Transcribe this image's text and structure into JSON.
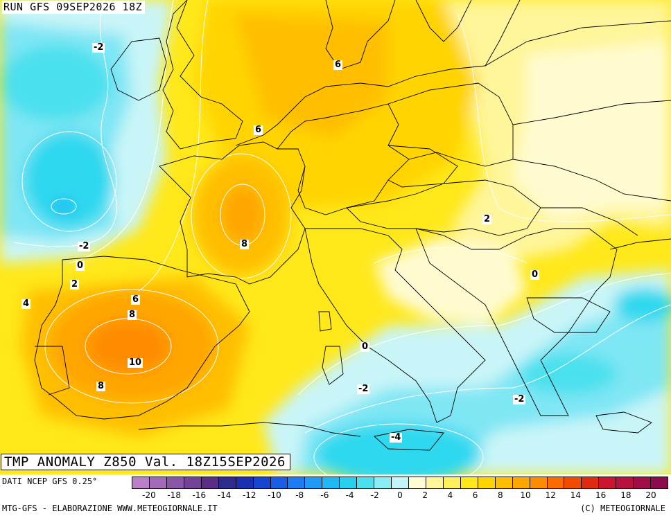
{
  "titles": {
    "run": "RUN GFS 09SEP2026 18Z",
    "valid": "TMP ANOMALY Z850 Val. 18Z15SEP2026"
  },
  "footer": {
    "data_source": "DATI NCEP GFS 0.25°",
    "credit_left": "MTG-GFS - ELABORAZIONE WWW.METEOGIORNALE.IT",
    "credit_right": "(C) METEOGIORNALE"
  },
  "colorbar": {
    "colors": [
      "#b97fc9",
      "#a26ab9",
      "#8b55a8",
      "#734195",
      "#5a2e85",
      "#2e2b8f",
      "#1b30b0",
      "#1745d0",
      "#1a5ee8",
      "#1d7cf2",
      "#1f9af5",
      "#1fb8f2",
      "#28d0ee",
      "#4ce0ee",
      "#8aecf4",
      "#c4f5f8",
      "#fffbd4",
      "#fff59a",
      "#fff060",
      "#ffe81a",
      "#ffd400",
      "#ffbf00",
      "#ffa600",
      "#ff8c00",
      "#ff6a00",
      "#f24a00",
      "#e02a10",
      "#cc1430",
      "#b8103f",
      "#a20d48",
      "#8c0b4f"
    ],
    "tick_labels": [
      "-20",
      "-18",
      "-16",
      "-14",
      "-12",
      "-10",
      "-8",
      "-6",
      "-4",
      "-2",
      "0",
      "2",
      "4",
      "6",
      "8",
      "10",
      "12",
      "14",
      "16",
      "18",
      "20"
    ]
  },
  "map_colors": {
    "sea_cold": "#2fd8ef",
    "sea_cool": "#7fe6f4",
    "neutral_cool": "#c9f5f8",
    "neutral_warm": "#fffbd0",
    "warm_light": "#fff59a",
    "warm": "#ffe81a",
    "warm_strong": "#ffd400",
    "hot": "#ffbf00",
    "hotter": "#ffa600",
    "hottest": "#ff8c00",
    "borders": "#000000",
    "isolines": "#ffffff"
  },
  "contour_labels": [
    {
      "text": "-2"
    },
    {
      "text": "6"
    },
    {
      "text": "6"
    },
    {
      "text": "8"
    },
    {
      "text": "-2"
    },
    {
      "text": "0"
    },
    {
      "text": "2"
    },
    {
      "text": "4"
    },
    {
      "text": "6"
    },
    {
      "text": "8"
    },
    {
      "text": "10"
    },
    {
      "text": "8"
    },
    {
      "text": "2"
    },
    {
      "text": "0"
    },
    {
      "text": "0"
    },
    {
      "text": "-2"
    },
    {
      "text": "-2"
    },
    {
      "text": "-4"
    }
  ]
}
